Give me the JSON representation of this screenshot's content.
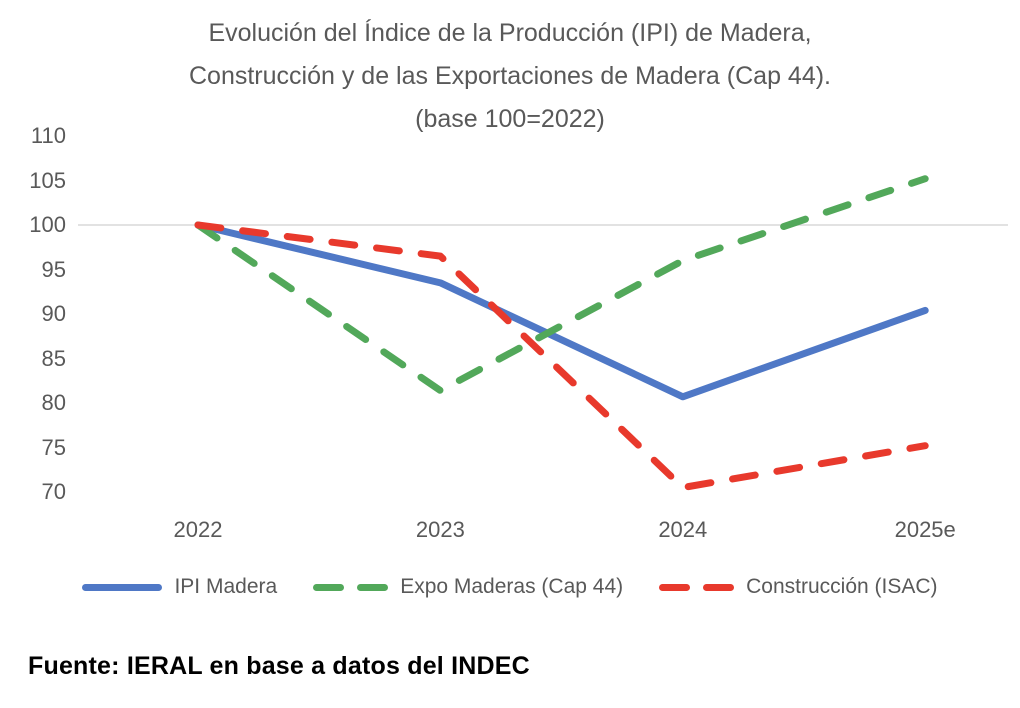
{
  "title": {
    "lines": [
      "Evolución del Índice de la Producción (IPI) de Madera,",
      "Construcción y de las Exportaciones de Madera (Cap 44).",
      "(base 100=2022)"
    ]
  },
  "source": "Fuente: IERAL en base a datos del INDEC",
  "colors": {
    "title_text": "#595959",
    "axis_text": "#595959",
    "gridline": "#d9d9d9",
    "ipi_madera": "#4f78c6",
    "expo_maderas": "#52a85a",
    "construccion": "#e8392c",
    "source_text": "#000000"
  },
  "chart_data": {
    "type": "line",
    "categories": [
      "2022",
      "2023",
      "2024",
      "2025e"
    ],
    "series": [
      {
        "name": "IPI Madera",
        "values": [
          100,
          93.5,
          80.7,
          90.4
        ],
        "color": "#4f78c6",
        "style": "solid"
      },
      {
        "name": "Expo Maderas (Cap 44)",
        "values": [
          100,
          81.4,
          96,
          105.2
        ],
        "color": "#52a85a",
        "style": "dashed"
      },
      {
        "name": "Construcción (ISAC)",
        "values": [
          100,
          96.5,
          70.5,
          75.2
        ],
        "color": "#e8392c",
        "style": "dashed"
      }
    ],
    "yticks": [
      110,
      105,
      100,
      95,
      90,
      85,
      80,
      75,
      70
    ],
    "ylim": [
      70,
      110
    ],
    "gridlines": [
      100
    ],
    "grid": "only at 100 (base line)",
    "legend_position": "bottom",
    "title": "Evolución del Índice de la Producción (IPI) de Madera, Construcción y de las Exportaciones de Madera (Cap 44). (base 100=2022)"
  }
}
